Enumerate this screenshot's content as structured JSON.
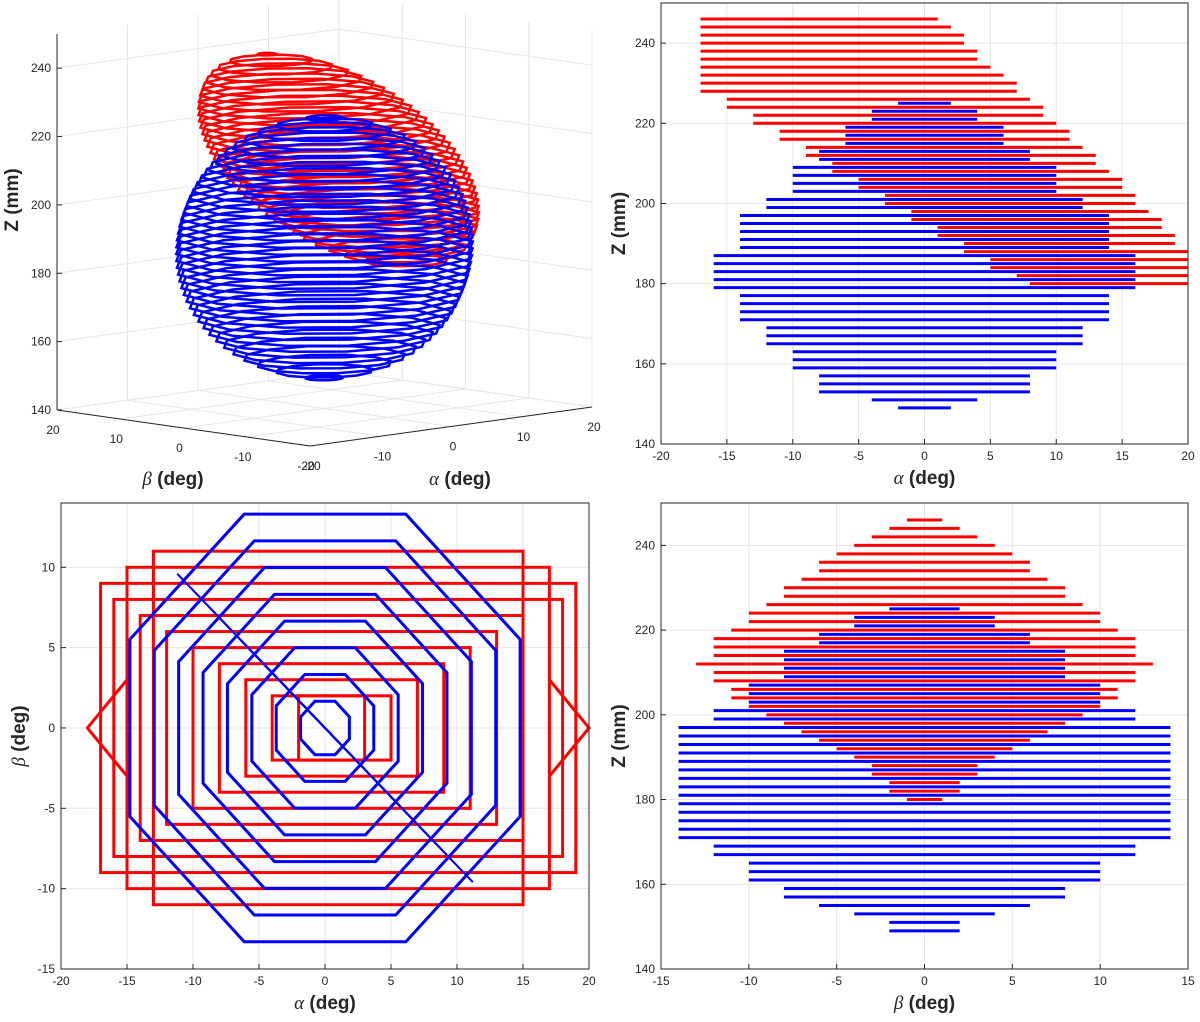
{
  "chart_data": [
    {
      "panel": "3d-view",
      "type": "line",
      "xlabel_symbol": "α",
      "xlabel_text": " (deg)",
      "ylabel_symbol": "β",
      "ylabel_text": " (deg)",
      "zlabel": "Z (mm)",
      "xlim": [
        -20,
        20
      ],
      "ylim": [
        -20,
        20
      ],
      "zlim": [
        140,
        250
      ],
      "x_ticks": [
        "-20",
        "-10",
        "0",
        "10",
        "20"
      ],
      "y_ticks": [
        "20",
        "10",
        "0",
        "-10",
        "-20"
      ],
      "z_ticks": [
        "140",
        "160",
        "180",
        "200",
        "220",
        "240"
      ],
      "series": [
        {
          "color": "#ff0000",
          "z_range": [
            180,
            246
          ],
          "center_alpha": 2,
          "center_beta": 0
        },
        {
          "color": "#0000ff",
          "z_range": [
            149,
            225
          ],
          "center_alpha": 0,
          "center_beta": 0
        }
      ]
    },
    {
      "panel": "alpha-z",
      "type": "line",
      "xlabel_symbol": "α",
      "xlabel_text": " (deg)",
      "ylabel": "Z (mm)",
      "xlim": [
        -20,
        20
      ],
      "ylim": [
        140,
        250
      ],
      "x_ticks": [
        "-20",
        "-15",
        "-10",
        "-5",
        "0",
        "5",
        "10",
        "15",
        "20"
      ],
      "y_ticks": [
        "140",
        "160",
        "180",
        "200",
        "220",
        "240"
      ],
      "series": [
        {
          "color": "#ff0000",
          "segments": [
            [
              246,
              -17,
              1
            ],
            [
              244,
              -17,
              2
            ],
            [
              242,
              -17,
              3
            ],
            [
              240,
              -17,
              3
            ],
            [
              238,
              -17,
              4
            ],
            [
              236,
              -17,
              4
            ],
            [
              234,
              -17,
              5
            ],
            [
              232,
              -17,
              6
            ],
            [
              230,
              -17,
              7
            ],
            [
              228,
              -17,
              7
            ],
            [
              226,
              -15,
              8
            ],
            [
              224,
              -15,
              9
            ],
            [
              222,
              -13,
              9
            ],
            [
              220,
              -13,
              10
            ],
            [
              218,
              -11,
              11
            ],
            [
              216,
              -11,
              11
            ],
            [
              214,
              -9,
              12
            ],
            [
              212,
              -9,
              13
            ],
            [
              210,
              -7,
              13
            ],
            [
              208,
              -7,
              14
            ],
            [
              206,
              -5,
              15
            ],
            [
              204,
              -5,
              15
            ],
            [
              202,
              -3,
              16
            ],
            [
              200,
              -3,
              16
            ],
            [
              198,
              -1,
              17
            ],
            [
              196,
              -1,
              18
            ],
            [
              194,
              1,
              18
            ],
            [
              192,
              1,
              19
            ],
            [
              190,
              3,
              19
            ],
            [
              188,
              3,
              20
            ],
            [
              186,
              5,
              20
            ],
            [
              184,
              5,
              20
            ],
            [
              182,
              7,
              20
            ],
            [
              180,
              8,
              20
            ]
          ]
        },
        {
          "color": "#0000ff",
          "segments": [
            [
              225,
              -2,
              2
            ],
            [
              223,
              -4,
              4
            ],
            [
              221,
              -4,
              4
            ],
            [
              219,
              -6,
              6
            ],
            [
              217,
              -6,
              6
            ],
            [
              215,
              -6,
              6
            ],
            [
              213,
              -8,
              8
            ],
            [
              211,
              -8,
              8
            ],
            [
              209,
              -10,
              10
            ],
            [
              207,
              -10,
              10
            ],
            [
              205,
              -10,
              10
            ],
            [
              203,
              -10,
              10
            ],
            [
              201,
              -12,
              12
            ],
            [
              199,
              -12,
              12
            ],
            [
              197,
              -14,
              14
            ],
            [
              195,
              -14,
              14
            ],
            [
              193,
              -14,
              14
            ],
            [
              191,
              -14,
              14
            ],
            [
              189,
              -14,
              14
            ],
            [
              187,
              -16,
              16
            ],
            [
              185,
              -16,
              16
            ],
            [
              183,
              -16,
              16
            ],
            [
              181,
              -16,
              16
            ],
            [
              179,
              -16,
              16
            ],
            [
              177,
              -14,
              14
            ],
            [
              175,
              -14,
              14
            ],
            [
              173,
              -14,
              14
            ],
            [
              171,
              -14,
              14
            ],
            [
              169,
              -12,
              12
            ],
            [
              167,
              -12,
              12
            ],
            [
              165,
              -12,
              12
            ],
            [
              163,
              -10,
              10
            ],
            [
              161,
              -10,
              10
            ],
            [
              159,
              -10,
              10
            ],
            [
              157,
              -8,
              8
            ],
            [
              155,
              -8,
              8
            ],
            [
              153,
              -8,
              8
            ],
            [
              151,
              -4,
              4
            ],
            [
              149,
              -2,
              2
            ]
          ]
        }
      ]
    },
    {
      "panel": "alpha-beta",
      "type": "line",
      "xlabel_symbol": "α",
      "xlabel_text": " (deg)",
      "ylabel_symbol": "β",
      "ylabel_text": " (deg)",
      "xlim": [
        -20,
        20
      ],
      "ylim": [
        -15,
        14
      ],
      "x_ticks": [
        "-20",
        "-15",
        "-10",
        "-5",
        "0",
        "5",
        "10",
        "15",
        "20"
      ],
      "y_ticks": [
        "-15",
        "-10",
        "-5",
        "0",
        "5",
        "10"
      ],
      "series": [
        {
          "color": "#ff0000",
          "rectangles": [
            [
              -2,
              3,
              -2,
              2
            ],
            [
              -4,
              5,
              -2,
              2
            ],
            [
              -6,
              7,
              -3,
              3
            ],
            [
              -8,
              9,
              -4,
              4
            ],
            [
              -10,
              11,
              -5,
              5
            ],
            [
              -12,
              13,
              -6,
              6
            ],
            [
              -14,
              15,
              -7,
              7
            ],
            [
              -16,
              18,
              -8,
              8
            ],
            [
              -17,
              19,
              -9,
              9
            ],
            [
              -15,
              17,
              -10,
              10
            ],
            [
              -13,
              15,
              -11,
              11
            ]
          ]
        },
        {
          "color": "#0000ff",
          "diamonds": [
            2,
            4,
            6,
            8,
            10,
            12,
            14,
            16
          ]
        }
      ]
    },
    {
      "panel": "beta-z",
      "type": "line",
      "xlabel_symbol": "β",
      "xlabel_text": " (deg)",
      "ylabel": "Z (mm)",
      "xlim": [
        -15,
        15
      ],
      "ylim": [
        140,
        250
      ],
      "x_ticks": [
        "-15",
        "-10",
        "-5",
        "0",
        "5",
        "10",
        "15"
      ],
      "y_ticks": [
        "140",
        "160",
        "180",
        "200",
        "220",
        "240"
      ],
      "series": [
        {
          "color": "#ff0000",
          "segments": [
            [
              246,
              -1,
              1
            ],
            [
              244,
              -2,
              2
            ],
            [
              242,
              -3,
              3
            ],
            [
              240,
              -4,
              4
            ],
            [
              238,
              -5,
              5
            ],
            [
              236,
              -6,
              6
            ],
            [
              234,
              -6,
              6
            ],
            [
              232,
              -7,
              7
            ],
            [
              230,
              -8,
              8
            ],
            [
              228,
              -8,
              8
            ],
            [
              226,
              -9,
              9
            ],
            [
              224,
              -10,
              10
            ],
            [
              222,
              -10,
              10
            ],
            [
              220,
              -11,
              11
            ],
            [
              218,
              -12,
              12
            ],
            [
              216,
              -12,
              12
            ],
            [
              214,
              -12,
              12
            ],
            [
              212,
              -13,
              13
            ],
            [
              210,
              -12,
              12
            ],
            [
              208,
              -12,
              12
            ],
            [
              206,
              -11,
              11
            ],
            [
              204,
              -11,
              11
            ],
            [
              202,
              -10,
              10
            ],
            [
              200,
              -9,
              9
            ],
            [
              198,
              -8,
              8
            ],
            [
              196,
              -7,
              7
            ],
            [
              194,
              -6,
              6
            ],
            [
              192,
              -5,
              5
            ],
            [
              190,
              -4,
              4
            ],
            [
              188,
              -3,
              3
            ],
            [
              186,
              -3,
              3
            ],
            [
              184,
              -2,
              2
            ],
            [
              182,
              -2,
              2
            ],
            [
              180,
              -1,
              1
            ]
          ]
        },
        {
          "color": "#0000ff",
          "segments": [
            [
              225,
              -2,
              2
            ],
            [
              223,
              -4,
              4
            ],
            [
              221,
              -4,
              4
            ],
            [
              219,
              -6,
              6
            ],
            [
              217,
              -6,
              6
            ],
            [
              215,
              -8,
              8
            ],
            [
              213,
              -8,
              8
            ],
            [
              211,
              -8,
              8
            ],
            [
              209,
              -8,
              8
            ],
            [
              207,
              -10,
              10
            ],
            [
              205,
              -10,
              10
            ],
            [
              203,
              -10,
              10
            ],
            [
              201,
              -12,
              12
            ],
            [
              199,
              -12,
              12
            ],
            [
              197,
              -14,
              14
            ],
            [
              195,
              -14,
              14
            ],
            [
              193,
              -14,
              14
            ],
            [
              191,
              -14,
              14
            ],
            [
              189,
              -14,
              14
            ],
            [
              187,
              -14,
              14
            ],
            [
              185,
              -14,
              14
            ],
            [
              183,
              -14,
              14
            ],
            [
              181,
              -14,
              14
            ],
            [
              179,
              -14,
              14
            ],
            [
              177,
              -14,
              14
            ],
            [
              175,
              -14,
              14
            ],
            [
              173,
              -14,
              14
            ],
            [
              171,
              -14,
              14
            ],
            [
              169,
              -12,
              12
            ],
            [
              167,
              -12,
              12
            ],
            [
              165,
              -10,
              10
            ],
            [
              163,
              -10,
              10
            ],
            [
              161,
              -10,
              10
            ],
            [
              159,
              -8,
              8
            ],
            [
              157,
              -8,
              8
            ],
            [
              155,
              -6,
              6
            ],
            [
              153,
              -4,
              4
            ],
            [
              151,
              -2,
              2
            ],
            [
              149,
              -2,
              2
            ]
          ]
        }
      ]
    }
  ]
}
